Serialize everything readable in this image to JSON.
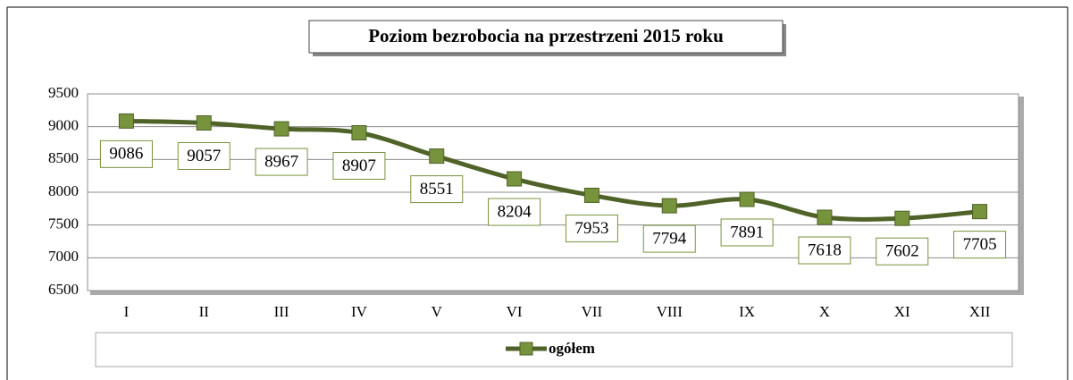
{
  "chart_data": {
    "type": "line",
    "title": "Poziom bezrobocia na przestrzeni 2015 roku",
    "categories": [
      "I",
      "II",
      "III",
      "IV",
      "V",
      "VI",
      "VII",
      "VIII",
      "IX",
      "X",
      "XI",
      "XII"
    ],
    "series": [
      {
        "name": "ogółem",
        "color": "#4f6228",
        "marker_color": "#77933c",
        "values": [
          9086,
          9057,
          8967,
          8907,
          8551,
          8204,
          7953,
          7794,
          7891,
          7618,
          7602,
          7705
        ]
      }
    ],
    "ylim": [
      6500,
      9500
    ],
    "yticks": [
      6500,
      7000,
      7500,
      8000,
      8500,
      9000,
      9500
    ],
    "grid": true,
    "legend": "bottom"
  }
}
